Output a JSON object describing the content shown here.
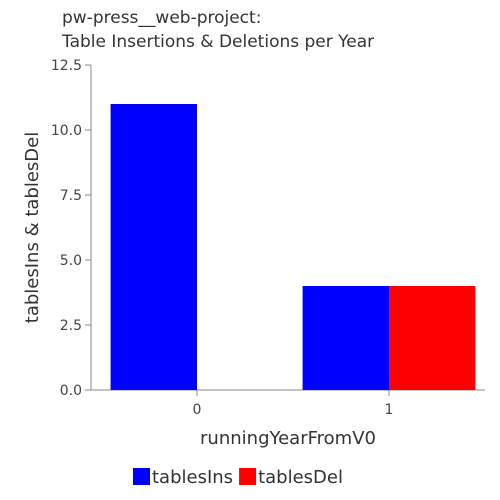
{
  "chart_data": {
    "type": "bar",
    "title_line1": "pw-press__web-project:",
    "title_line2": "Table Insertions & Deletions per Year",
    "xlabel": "runningYearFromV0",
    "ylabel": "tablesIns & tablesDel",
    "categories": [
      "0",
      "1"
    ],
    "series": [
      {
        "name": "tablesIns",
        "color": "#0000ff",
        "values": [
          11,
          4
        ]
      },
      {
        "name": "tablesDel",
        "color": "#ff0000",
        "values": [
          0,
          4
        ]
      }
    ],
    "ylim": [
      0,
      12.5
    ],
    "yticks": [
      "0.0",
      "2.5",
      "5.0",
      "7.5",
      "10.0",
      "12.5"
    ],
    "grid": false,
    "legend_position": "bottom"
  }
}
